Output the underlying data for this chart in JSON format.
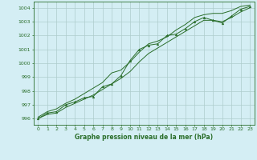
{
  "x": [
    0,
    1,
    2,
    3,
    4,
    5,
    6,
    7,
    8,
    9,
    10,
    11,
    12,
    13,
    14,
    15,
    16,
    17,
    18,
    19,
    20,
    21,
    22,
    23
  ],
  "y_main": [
    996.0,
    996.4,
    996.5,
    997.0,
    997.2,
    997.5,
    997.6,
    998.3,
    998.5,
    999.1,
    1000.2,
    1001.0,
    1001.3,
    1001.4,
    1002.0,
    1002.1,
    1002.5,
    1003.0,
    1003.3,
    1003.1,
    1002.9,
    1003.4,
    1003.9,
    1004.1
  ],
  "y_upper": [
    996.1,
    996.5,
    996.7,
    997.1,
    997.4,
    997.8,
    998.2,
    998.6,
    999.3,
    999.5,
    1000.1,
    1000.8,
    1001.4,
    1001.6,
    1001.9,
    1002.4,
    1002.8,
    1003.3,
    1003.5,
    1003.6,
    1003.6,
    1003.8,
    1004.1,
    1004.2
  ],
  "y_lower": [
    996.0,
    996.3,
    996.4,
    996.8,
    997.1,
    997.4,
    997.7,
    998.1,
    998.5,
    998.9,
    999.4,
    1000.1,
    1000.7,
    1001.1,
    1001.5,
    1001.9,
    1002.3,
    1002.7,
    1003.1,
    1003.1,
    1003.0,
    1003.3,
    1003.7,
    1004.0
  ],
  "background_color": "#d4eef4",
  "grid_color": "#aecccc",
  "line_color": "#2a6e2a",
  "xlabel": "Graphe pression niveau de la mer (hPa)",
  "ylim": [
    995.55,
    1004.45
  ],
  "xlim": [
    -0.5,
    23.5
  ],
  "yticks": [
    996,
    997,
    998,
    999,
    1000,
    1001,
    1002,
    1003,
    1004
  ],
  "xticks": [
    0,
    1,
    2,
    3,
    4,
    5,
    6,
    7,
    8,
    9,
    10,
    11,
    12,
    13,
    14,
    15,
    16,
    17,
    18,
    19,
    20,
    21,
    22,
    23
  ],
  "ylabel_fontsize": 5.0,
  "xlabel_fontsize": 5.5,
  "tick_fontsize": 4.5
}
